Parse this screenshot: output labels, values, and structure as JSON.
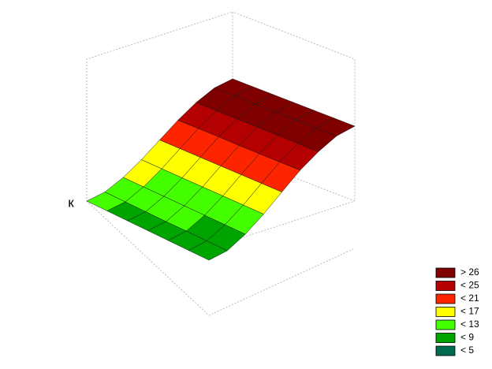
{
  "chart_data": {
    "type": "surface",
    "z_axis_label": "к",
    "z": [
      [
        9.0,
        9.8,
        12.0,
        15.0,
        18.5,
        22.0,
        25.0,
        27.2,
        28.0
      ],
      [
        8.5,
        9.3,
        11.6,
        14.7,
        18.3,
        21.9,
        24.9,
        27.2,
        28.0
      ],
      [
        8.0,
        8.8,
        11.2,
        14.4,
        18.1,
        21.8,
        24.8,
        27.1,
        28.0
      ],
      [
        7.5,
        8.3,
        10.8,
        14.1,
        17.9,
        21.6,
        24.8,
        27.1,
        28.0
      ],
      [
        7.0,
        7.9,
        10.4,
        13.8,
        17.7,
        21.5,
        24.7,
        27.1,
        28.0
      ],
      [
        6.5,
        7.4,
        10.0,
        13.5,
        17.5,
        21.4,
        24.6,
        27.0,
        28.0
      ],
      [
        6.0,
        6.9,
        9.6,
        13.2,
        17.3,
        21.3,
        24.5,
        27.0,
        28.0
      ]
    ],
    "legend": [
      {
        "value": 26,
        "label": "> 26",
        "color": "#800000"
      },
      {
        "value": 25,
        "label": "< 25",
        "color": "#b40000"
      },
      {
        "value": 21,
        "label": "< 21",
        "color": "#ff2400"
      },
      {
        "value": 17,
        "label": "< 17",
        "color": "#ffff00"
      },
      {
        "value": 13,
        "label": "< 13",
        "color": "#44ff00"
      },
      {
        "value": 9,
        "label": "< 9",
        "color": "#00a400"
      },
      {
        "value": 5,
        "label": "< 5",
        "color": "#006a4e"
      }
    ]
  }
}
